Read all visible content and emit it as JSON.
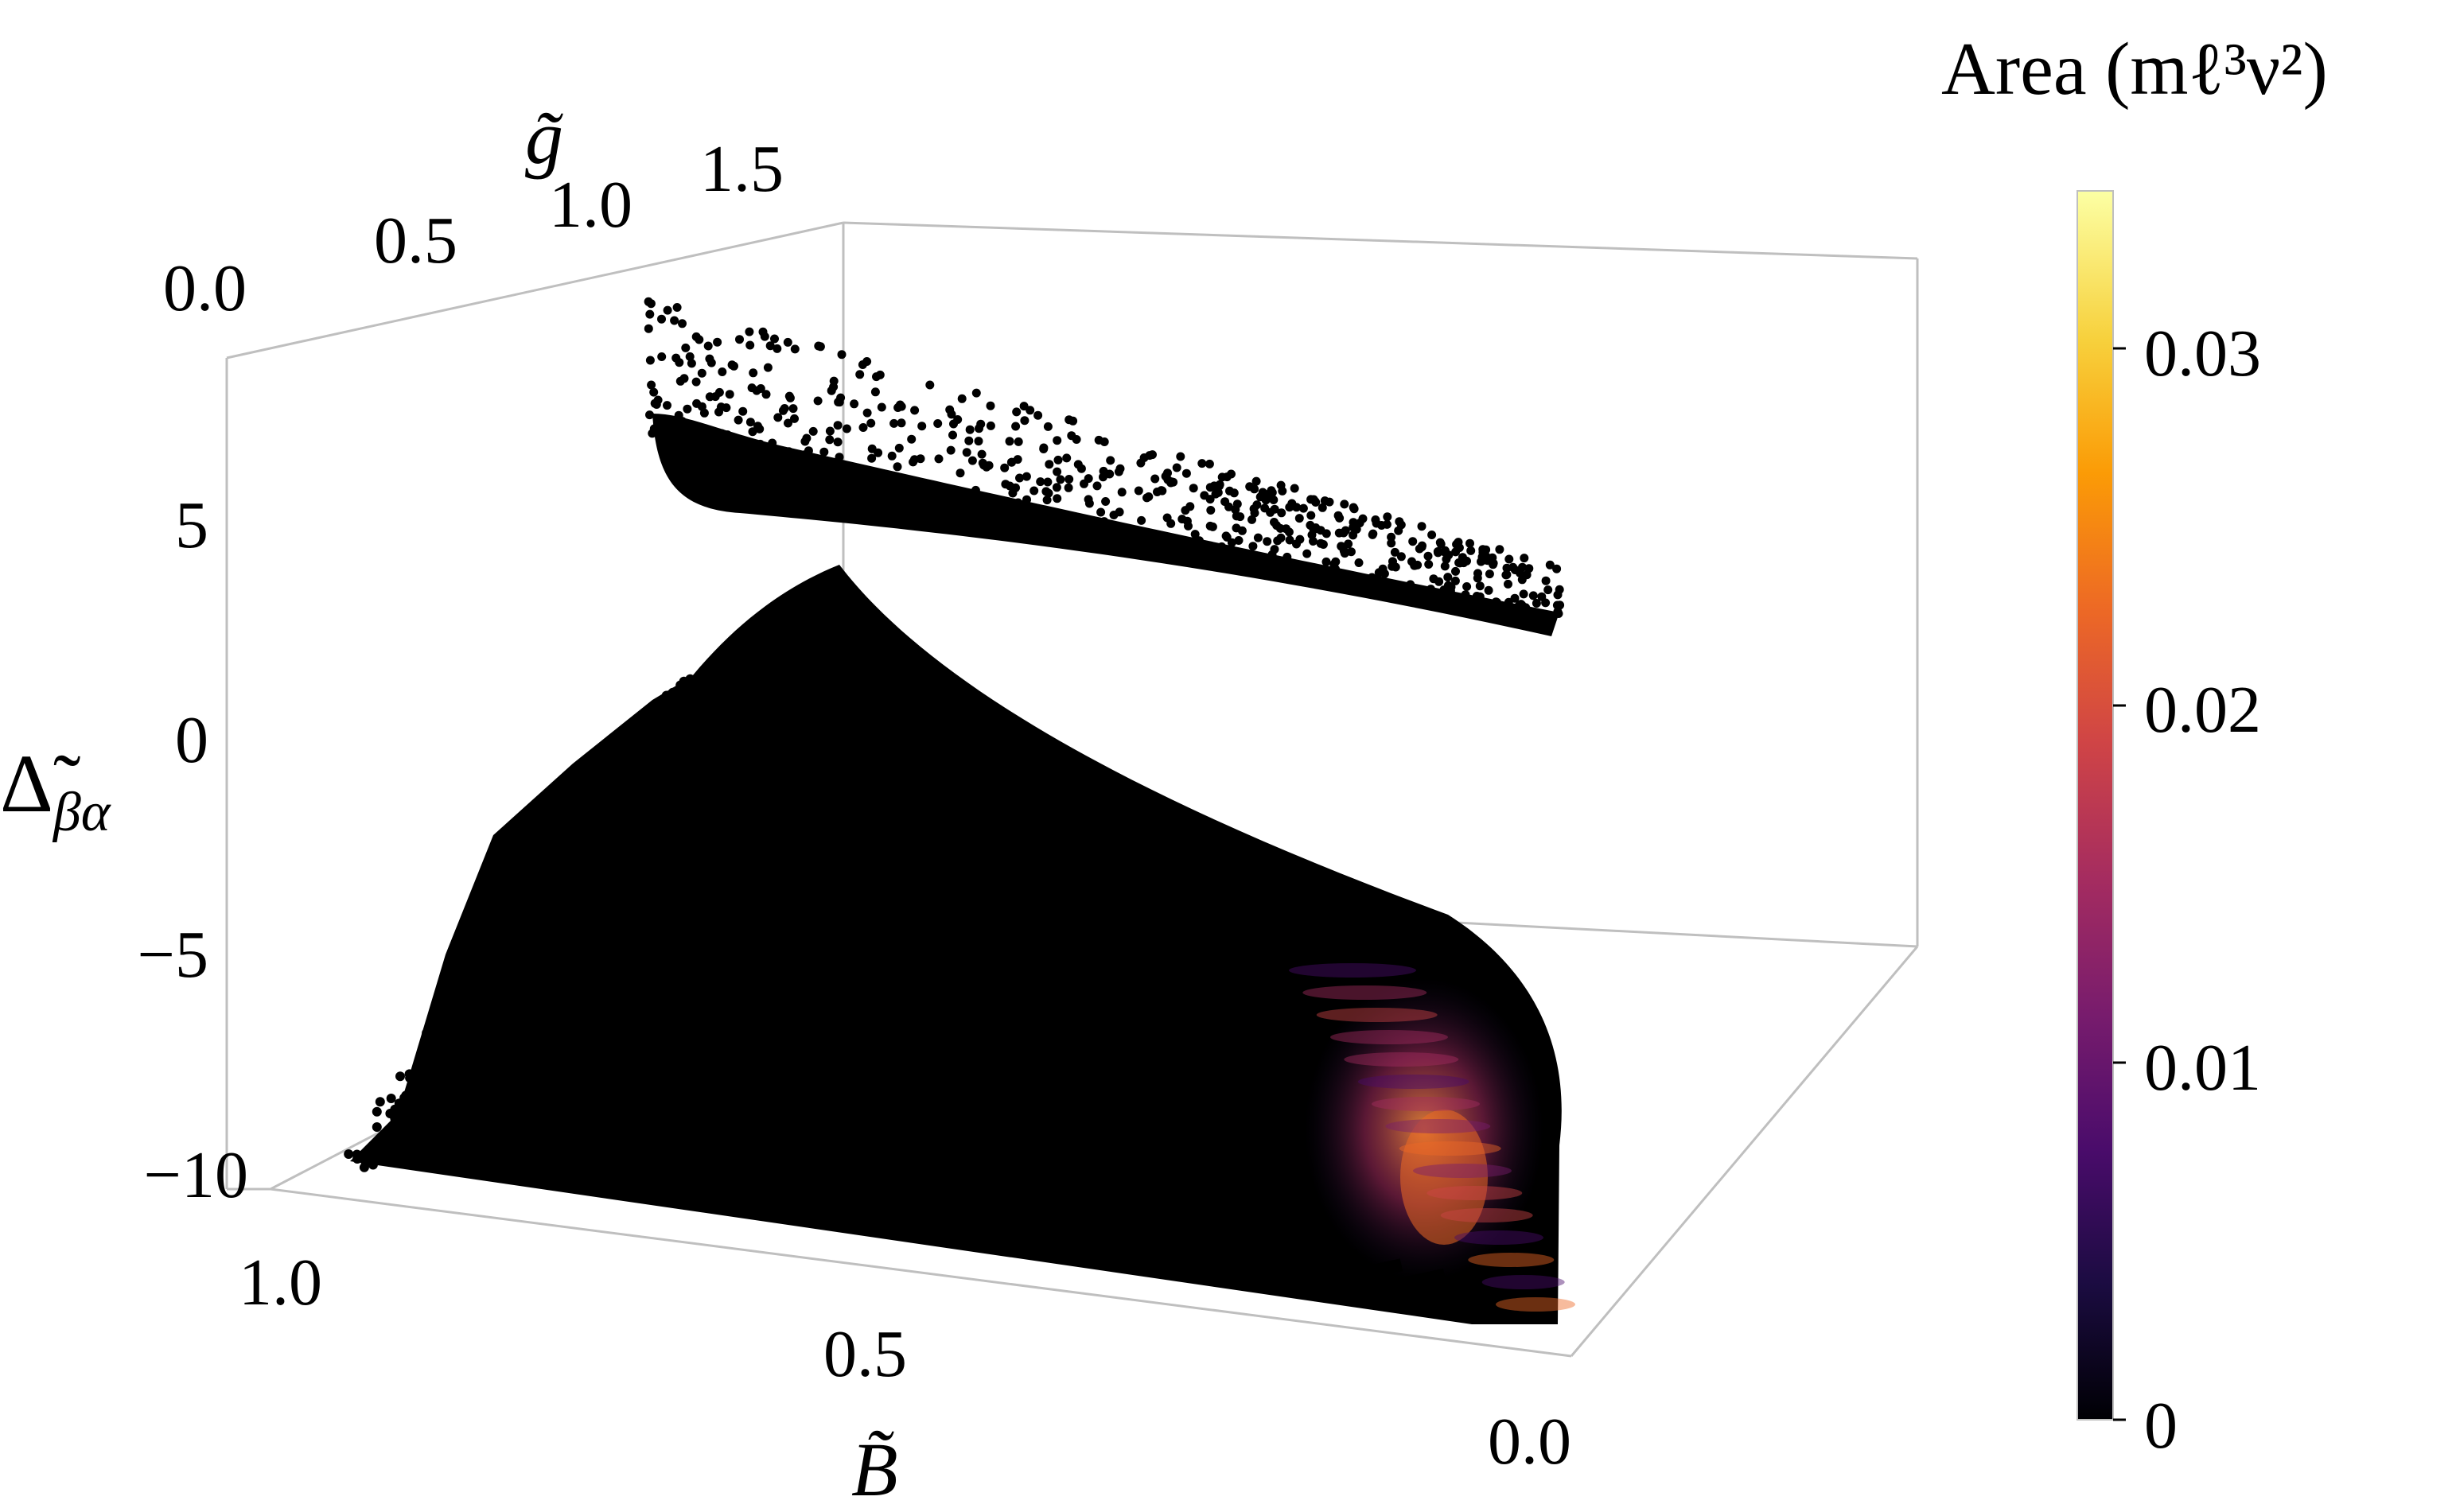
{
  "chart_data": {
    "type": "scatter",
    "dimensions": "3d",
    "axes": {
      "x": {
        "label": "B̃",
        "ticks": [
          "1.0",
          "0.5",
          "0.0"
        ],
        "range": [
          0,
          1
        ]
      },
      "y": {
        "label": "g̃",
        "ticks": [
          "0.0",
          "0.5",
          "1.0",
          "1.5"
        ],
        "range": [
          0,
          1.7
        ]
      },
      "z": {
        "label_main": "Δ̃",
        "label_sub": "βα",
        "ticks": [
          "5",
          "0",
          "−5",
          "−10"
        ],
        "range": [
          -11,
          8
        ]
      }
    },
    "colorbar": {
      "title": "Area (mℓ³ν²)",
      "ticks": [
        "0",
        "0.01",
        "0.02",
        "0.03"
      ],
      "range": [
        0,
        0.034
      ],
      "colormap": [
        "#000004",
        "#1b0c41",
        "#4a0c6b",
        "#781c6d",
        "#a52c60",
        "#cf4446",
        "#ed6925",
        "#fb9b06",
        "#f7d13d",
        "#fcffa4"
      ]
    },
    "series": [
      {
        "region": "upper band, g̃ ≈ 1.5, Δ̃ ≈ 3 to 7",
        "area": 0
      },
      {
        "region": "lower sheet, Δ̃ ≈ −10 to 2",
        "area_range": [
          0,
          0.03
        ]
      }
    ],
    "grid": false,
    "box": true,
    "legend": "colorbar-right"
  }
}
